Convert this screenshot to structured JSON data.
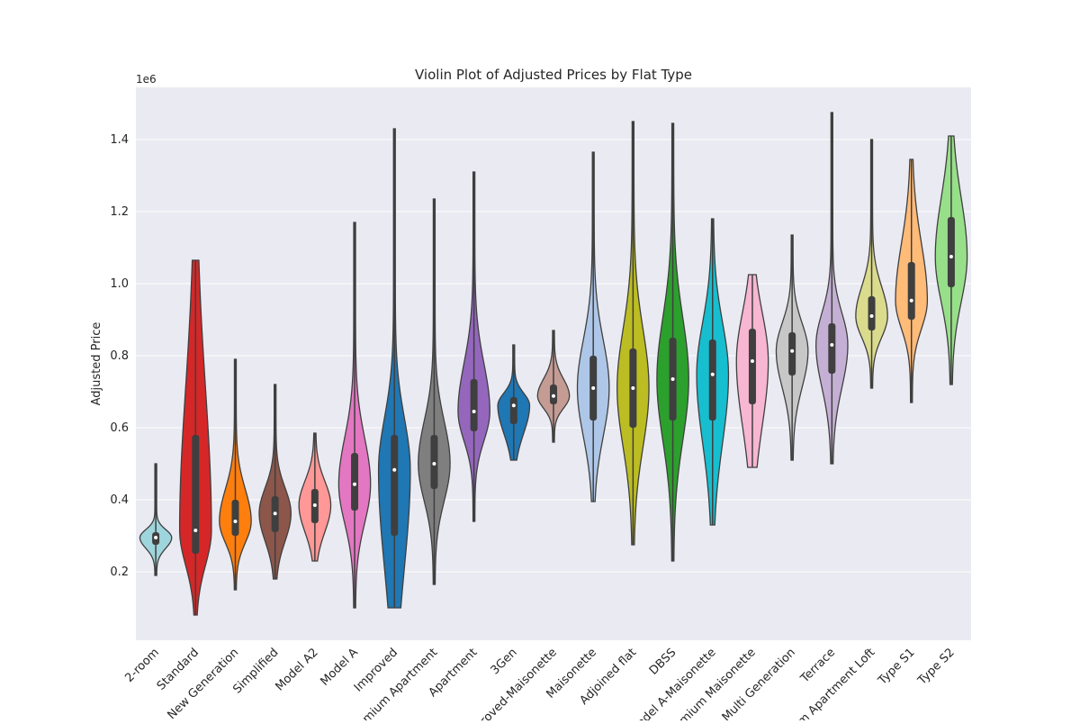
{
  "chart_data": {
    "type": "violin",
    "title": "Violin Plot of Adjusted Prices by Flat Type",
    "y_label": "Adjusted Price",
    "y_offset_label": "1e6",
    "categories": [
      "2-room",
      "Standard",
      "New Generation",
      "Simplified",
      "Model A2",
      "Model A",
      "Improved",
      "Premium Apartment",
      "Apartment",
      "3Gen",
      "Improved-Maisonette",
      "Maisonette",
      "Adjoined flat",
      "DBSS",
      "Model A-Maisonette",
      "Premium Maisonette",
      "Multi Generation",
      "Terrace",
      "Premium Apartment Loft",
      "Type S1",
      "Type S2"
    ],
    "violins": [
      {
        "color": "#9fd5dc",
        "min": 0.19,
        "q1": 0.275,
        "median": 0.295,
        "q3": 0.31,
        "max": 0.5
      },
      {
        "color": "#d62728",
        "min": 0.08,
        "q1": 0.25,
        "median": 0.315,
        "q3": 0.58,
        "max": 1.065
      },
      {
        "color": "#ff7f0e",
        "min": 0.15,
        "q1": 0.3,
        "median": 0.34,
        "q3": 0.4,
        "max": 0.79
      },
      {
        "color": "#8c564b",
        "min": 0.18,
        "q1": 0.31,
        "median": 0.362,
        "q3": 0.41,
        "max": 0.72
      },
      {
        "color": "#ff9896",
        "min": 0.23,
        "q1": 0.335,
        "median": 0.385,
        "q3": 0.43,
        "max": 0.585
      },
      {
        "color": "#e377c2",
        "min": 0.1,
        "q1": 0.37,
        "median": 0.443,
        "q3": 0.53,
        "max": 1.17
      },
      {
        "color": "#1f77b4",
        "min": 0.1,
        "q1": 0.3,
        "median": 0.483,
        "q3": 0.58,
        "max": 1.43
      },
      {
        "color": "#7f7f7f",
        "min": 0.165,
        "q1": 0.43,
        "median": 0.5,
        "q3": 0.58,
        "max": 1.235
      },
      {
        "color": "#9467bd",
        "min": 0.34,
        "q1": 0.59,
        "median": 0.645,
        "q3": 0.735,
        "max": 1.31
      },
      {
        "color": "#1f77b4",
        "min": 0.51,
        "q1": 0.61,
        "median": 0.662,
        "q3": 0.685,
        "max": 0.83
      },
      {
        "color": "#c49c94",
        "min": 0.56,
        "q1": 0.665,
        "median": 0.688,
        "q3": 0.72,
        "max": 0.87
      },
      {
        "color": "#aec7e8",
        "min": 0.395,
        "q1": 0.62,
        "median": 0.71,
        "q3": 0.8,
        "max": 1.365
      },
      {
        "color": "#bcbd22",
        "min": 0.275,
        "q1": 0.6,
        "median": 0.71,
        "q3": 0.82,
        "max": 1.45
      },
      {
        "color": "#2ca02c",
        "min": 0.23,
        "q1": 0.62,
        "median": 0.735,
        "q3": 0.85,
        "max": 1.445
      },
      {
        "color": "#17becf",
        "min": 0.33,
        "q1": 0.62,
        "median": 0.748,
        "q3": 0.845,
        "max": 1.18
      },
      {
        "color": "#f7b6d2",
        "min": 0.49,
        "q1": 0.665,
        "median": 0.785,
        "q3": 0.875,
        "max": 1.025
      },
      {
        "color": "#c7c7c7",
        "min": 0.51,
        "q1": 0.745,
        "median": 0.813,
        "q3": 0.865,
        "max": 1.135
      },
      {
        "color": "#c5b0d5",
        "min": 0.5,
        "q1": 0.75,
        "median": 0.83,
        "q3": 0.89,
        "max": 1.475
      },
      {
        "color": "#dbdb8d",
        "min": 0.71,
        "q1": 0.87,
        "median": 0.91,
        "q3": 0.965,
        "max": 1.4
      },
      {
        "color": "#ffbb78",
        "min": 0.67,
        "q1": 0.9,
        "median": 0.953,
        "q3": 1.06,
        "max": 1.345
      },
      {
        "color": "#98df8a",
        "min": 0.72,
        "q1": 0.99,
        "median": 1.075,
        "q3": 1.185,
        "max": 1.41
      }
    ],
    "ylim": [
      0.01,
      1.545
    ],
    "yticks": [
      0.2,
      0.4,
      0.6,
      0.8,
      {
        "value": 1.0,
        "label": "1.0"
      },
      1.2,
      1.4
    ],
    "grid": true
  }
}
